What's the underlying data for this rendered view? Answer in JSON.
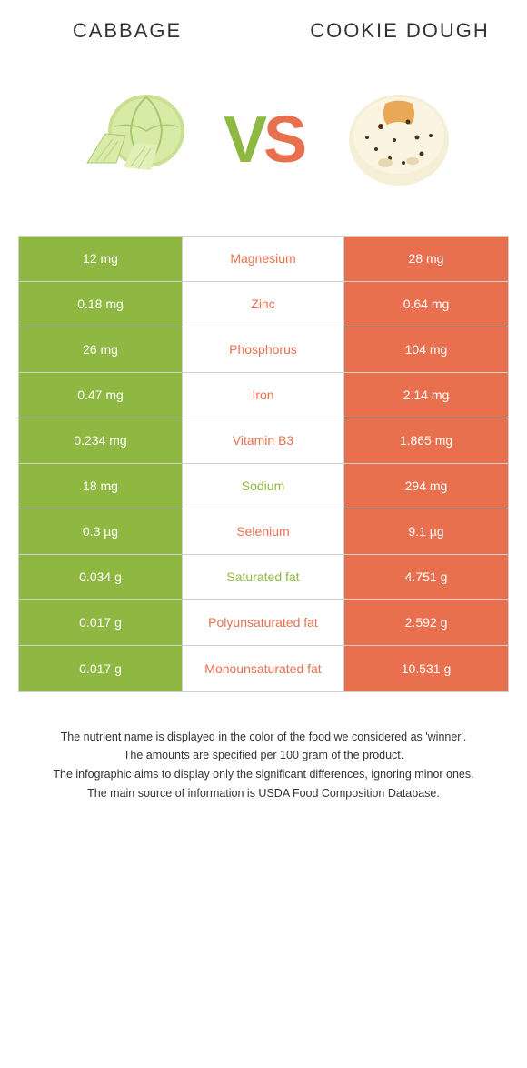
{
  "leftFood": {
    "title": "CABBAGE",
    "color": "#8fb843"
  },
  "rightFood": {
    "title": "COOKIE DOUGH",
    "color": "#e8704f"
  },
  "vs": {
    "v": "V",
    "s": "S"
  },
  "rows": [
    {
      "label": "Magnesium",
      "left": "12 mg",
      "right": "28 mg",
      "winner": "right"
    },
    {
      "label": "Zinc",
      "left": "0.18 mg",
      "right": "0.64 mg",
      "winner": "right"
    },
    {
      "label": "Phosphorus",
      "left": "26 mg",
      "right": "104 mg",
      "winner": "right"
    },
    {
      "label": "Iron",
      "left": "0.47 mg",
      "right": "2.14 mg",
      "winner": "right"
    },
    {
      "label": "Vitamin B3",
      "left": "0.234 mg",
      "right": "1.865 mg",
      "winner": "right"
    },
    {
      "label": "Sodium",
      "left": "18 mg",
      "right": "294 mg",
      "winner": "left"
    },
    {
      "label": "Selenium",
      "left": "0.3 µg",
      "right": "9.1 µg",
      "winner": "right"
    },
    {
      "label": "Saturated fat",
      "left": "0.034 g",
      "right": "4.751 g",
      "winner": "left"
    },
    {
      "label": "Polyunsaturated fat",
      "left": "0.017 g",
      "right": "2.592 g",
      "winner": "right"
    },
    {
      "label": "Monounsaturated fat",
      "left": "0.017 g",
      "right": "10.531 g",
      "winner": "right"
    }
  ],
  "footer": {
    "line1": "The nutrient name is displayed in the color of the food we considered as 'winner'.",
    "line2": "The amounts are specified per 100 gram of the product.",
    "line3": "The infographic aims to display only the significant differences, ignoring minor ones.",
    "line4": "The main source of information is USDA Food Composition Database."
  }
}
